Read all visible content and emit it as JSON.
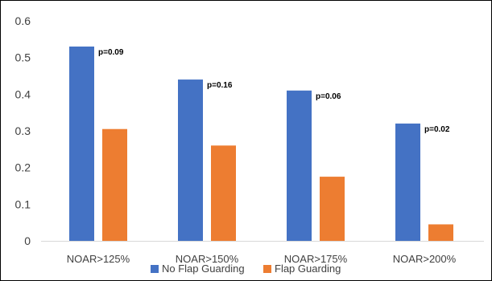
{
  "chart_data": {
    "type": "bar",
    "categories": [
      "NOAR>125%",
      "NOAR>150%",
      "NOAR>175%",
      "NOAR>200%"
    ],
    "series": [
      {
        "name": "No Flap Guarding",
        "color": "#4472C4",
        "values": [
          0.53,
          0.44,
          0.41,
          0.32
        ]
      },
      {
        "name": "Flap Guarding",
        "color": "#ED7D31",
        "values": [
          0.305,
          0.26,
          0.175,
          0.045
        ]
      }
    ],
    "annotations": [
      "p=0.09",
      "p=0.16",
      "p=0.06",
      "p=0.02"
    ],
    "ylim": [
      0,
      0.6
    ],
    "yticks": [
      "0",
      "0.1",
      "0.2",
      "0.3",
      "0.4",
      "0.5",
      "0.6"
    ],
    "grid": false,
    "legend_position": "bottom"
  }
}
